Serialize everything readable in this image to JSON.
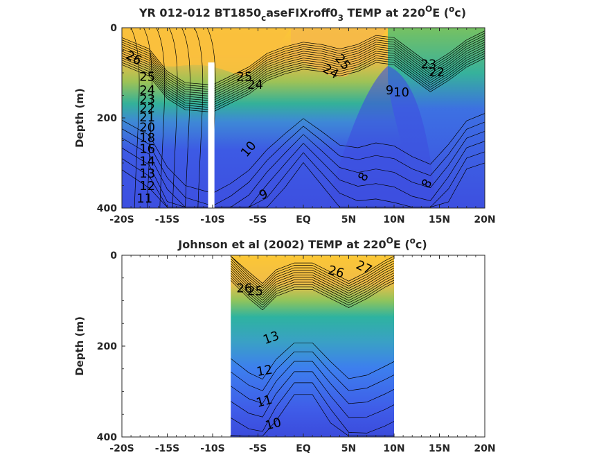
{
  "colors": {
    "warm": "#fcc735",
    "orange": "#f5b84a",
    "mid": "#3db48f",
    "deep_blue": "#3d4fe0",
    "blue": "#3e70f0",
    "axis": "#262626",
    "contour": "#000000",
    "gap": "#ffffff"
  },
  "chart_data": [
    {
      "type": "heatmap",
      "title": "YR 012-012 BT1850",
      "title_sub": "c",
      "title_mid": "aseFIXroff0",
      "title_sub2": "3",
      "title_end": " TEMP at 220",
      "title_sup": "O",
      "title_tail": "E (",
      "title_sup2": "o",
      "title_close": "c)",
      "ylabel": "Depth (m)",
      "xlim": [
        -20,
        20
      ],
      "ylim": [
        0,
        400
      ],
      "y_reversed": true,
      "x_ticks": [
        -20,
        -15,
        -10,
        -5,
        0,
        5,
        10,
        15,
        20
      ],
      "x_tick_labels": [
        "-20S",
        "-15S",
        "-10S",
        "-5S",
        "EQ",
        "5N",
        "10N",
        "15N",
        "20N"
      ],
      "y_ticks": [
        0,
        200,
        400
      ],
      "y_tick_labels": [
        "0",
        "200",
        "400"
      ],
      "data_extent_x": [
        -20,
        20
      ],
      "missing_column_x": [
        -10.5,
        -9.8
      ],
      "missing_column_depth": [
        77,
        400
      ],
      "contour_levels": [
        8,
        9,
        10,
        11,
        12,
        13,
        14,
        15,
        16,
        17,
        18,
        19,
        20,
        21,
        22,
        23,
        24,
        25,
        26
      ],
      "thermocline_depth": [
        {
          "lat": -20,
          "depth": 85
        },
        {
          "lat": -17,
          "depth": 110
        },
        {
          "lat": -15,
          "depth": 160
        },
        {
          "lat": -13,
          "depth": 185
        },
        {
          "lat": -10,
          "depth": 190
        },
        {
          "lat": -8,
          "depth": 170
        },
        {
          "lat": -6,
          "depth": 150
        },
        {
          "lat": -4,
          "depth": 120
        },
        {
          "lat": -2,
          "depth": 105
        },
        {
          "lat": 0,
          "depth": 95
        },
        {
          "lat": 2,
          "depth": 100
        },
        {
          "lat": 4,
          "depth": 110
        },
        {
          "lat": 6,
          "depth": 100
        },
        {
          "lat": 8,
          "depth": 80
        },
        {
          "lat": 10,
          "depth": 85
        },
        {
          "lat": 12,
          "depth": 115
        },
        {
          "lat": 14,
          "depth": 145
        },
        {
          "lat": 16,
          "depth": 120
        },
        {
          "lat": 18,
          "depth": 90
        },
        {
          "lat": 20,
          "depth": 70
        }
      ],
      "contour_labels": [
        {
          "text": "26",
          "lat": -18.9,
          "depth": 75,
          "rot": 28
        },
        {
          "text": "25",
          "lat": -17.2,
          "depth": 118,
          "rot": 0
        },
        {
          "text": "24",
          "lat": -17.2,
          "depth": 148,
          "rot": 0
        },
        {
          "text": "23",
          "lat": -17.2,
          "depth": 168,
          "rot": 0
        },
        {
          "text": "22",
          "lat": -17.2,
          "depth": 188,
          "rot": 0
        },
        {
          "text": "21",
          "lat": -17.2,
          "depth": 208,
          "rot": 0
        },
        {
          "text": "20",
          "lat": -17.2,
          "depth": 230,
          "rot": 0
        },
        {
          "text": "18",
          "lat": -17.2,
          "depth": 253,
          "rot": 0
        },
        {
          "text": "16",
          "lat": -17.2,
          "depth": 278,
          "rot": 0
        },
        {
          "text": "14",
          "lat": -17.2,
          "depth": 305,
          "rot": 0
        },
        {
          "text": "13",
          "lat": -17.2,
          "depth": 332,
          "rot": 0
        },
        {
          "text": "12",
          "lat": -17.2,
          "depth": 360,
          "rot": 0
        },
        {
          "text": "11",
          "lat": -17.5,
          "depth": 388,
          "rot": 0
        },
        {
          "text": "25",
          "lat": -6.5,
          "depth": 118,
          "rot": 0
        },
        {
          "text": "24",
          "lat": -5.3,
          "depth": 135,
          "rot": 0
        },
        {
          "text": "10",
          "lat": -5.7,
          "depth": 275,
          "rot": -50
        },
        {
          "text": "9",
          "lat": -4.2,
          "depth": 378,
          "rot": -25
        },
        {
          "text": "25",
          "lat": 4.0,
          "depth": 82,
          "rot": 50
        },
        {
          "text": "24",
          "lat": 2.8,
          "depth": 105,
          "rot": 30
        },
        {
          "text": "9",
          "lat": 9.5,
          "depth": 148,
          "rot": 0
        },
        {
          "text": "10",
          "lat": 10.8,
          "depth": 152,
          "rot": 0
        },
        {
          "text": "23",
          "lat": 13.8,
          "depth": 90,
          "rot": 0
        },
        {
          "text": "22",
          "lat": 14.7,
          "depth": 108,
          "rot": 0
        },
        {
          "text": "8",
          "lat": 7.0,
          "depth": 335,
          "rot": -60
        },
        {
          "text": "8",
          "lat": 14.0,
          "depth": 350,
          "rot": -60
        }
      ]
    },
    {
      "type": "heatmap",
      "title": "Johnson et al (2002) TEMP at 220",
      "title_sup": "O",
      "title_tail": "E (",
      "title_sup2": "o",
      "title_close": "c)",
      "ylabel": "Depth (m)",
      "xlim": [
        -20,
        20
      ],
      "ylim": [
        0,
        400
      ],
      "y_reversed": true,
      "x_ticks": [
        -20,
        -15,
        -10,
        -5,
        0,
        5,
        10,
        15,
        20
      ],
      "x_tick_labels": [
        "-20S",
        "-15S",
        "-10S",
        "-5S",
        "EQ",
        "5N",
        "10N",
        "15N",
        "20N"
      ],
      "y_ticks": [
        0,
        200,
        400
      ],
      "y_tick_labels": [
        "0",
        "200",
        "400"
      ],
      "data_extent_x": [
        -8,
        10
      ],
      "contour_levels": [
        10,
        11,
        12,
        13,
        14,
        15,
        16,
        17,
        18,
        19,
        20,
        21,
        22,
        23,
        24,
        25,
        26,
        27
      ],
      "thermocline_depth": [
        {
          "lat": -8,
          "depth": 60
        },
        {
          "lat": -6,
          "depth": 100
        },
        {
          "lat": -4.5,
          "depth": 125
        },
        {
          "lat": -3,
          "depth": 95
        },
        {
          "lat": -1,
          "depth": 80
        },
        {
          "lat": 1,
          "depth": 80
        },
        {
          "lat": 3,
          "depth": 100
        },
        {
          "lat": 5,
          "depth": 120
        },
        {
          "lat": 7,
          "depth": 100
        },
        {
          "lat": 9,
          "depth": 75
        },
        {
          "lat": 10,
          "depth": 65
        }
      ],
      "contour_labels": [
        {
          "text": "26",
          "lat": 3.5,
          "depth": 45,
          "rot": 15
        },
        {
          "text": "27",
          "lat": 6.5,
          "depth": 35,
          "rot": 25
        },
        {
          "text": "26",
          "lat": -6.5,
          "depth": 82,
          "rot": 0
        },
        {
          "text": "25",
          "lat": -5.3,
          "depth": 88,
          "rot": 0
        },
        {
          "text": "13",
          "lat": -3.4,
          "depth": 190,
          "rot": -20
        },
        {
          "text": "12",
          "lat": -4.2,
          "depth": 263,
          "rot": -10
        },
        {
          "text": "11",
          "lat": -4.2,
          "depth": 330,
          "rot": -15
        },
        {
          "text": "10",
          "lat": -3.2,
          "depth": 380,
          "rot": -15
        }
      ]
    }
  ]
}
